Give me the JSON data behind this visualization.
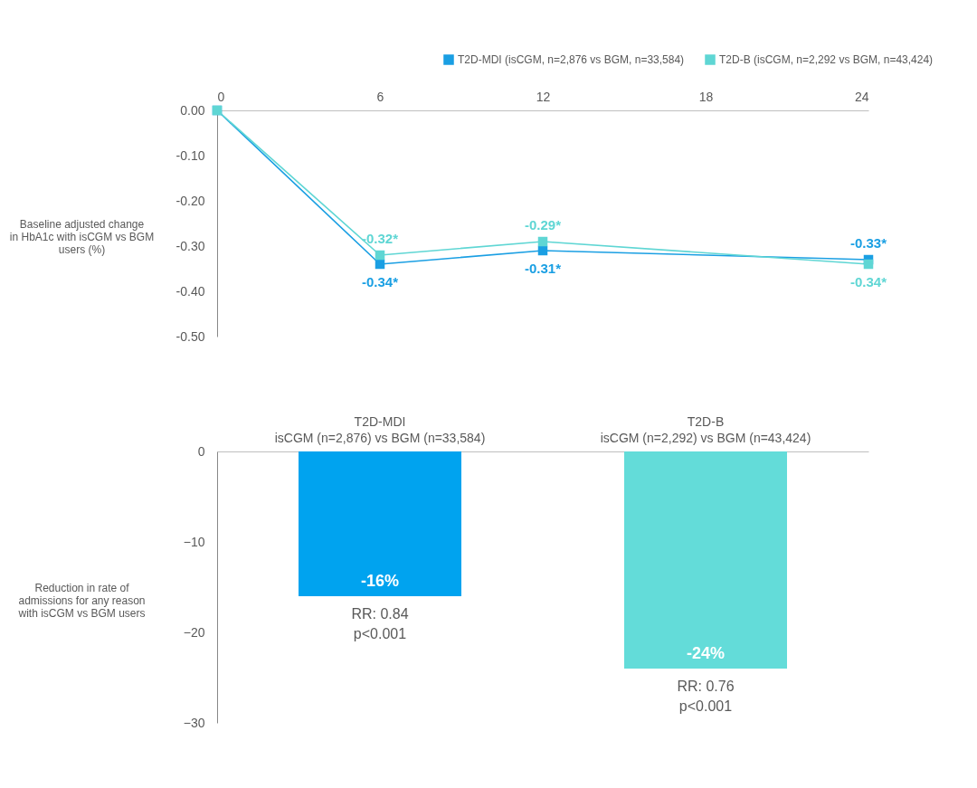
{
  "chart_data": [
    {
      "type": "line",
      "ylabel": "Baseline adjusted change in HbA1c with isCGM vs BGM users (%)",
      "x": [
        0,
        6,
        12,
        24
      ],
      "xlim": [
        0,
        24
      ],
      "xticks": [
        0,
        6,
        12,
        18,
        24
      ],
      "ylim": [
        -0.5,
        0
      ],
      "yticks": [
        {
          "value": 0,
          "label": "0.00"
        },
        {
          "value": -0.1,
          "label": "-0.10"
        },
        {
          "value": -0.2,
          "label": "-0.20"
        },
        {
          "value": -0.3,
          "label": "-0.30"
        },
        {
          "value": -0.4,
          "label": "-0.40"
        },
        {
          "value": -0.5,
          "label": "-0.50"
        }
      ],
      "marker": "square",
      "legend": "top right",
      "series": [
        {
          "name": "T2D-MDI (isCGM, n=2,876 vs BGM, n=33,584)",
          "color": "#1a9fe3",
          "values": [
            0,
            -0.34,
            -0.31,
            -0.33
          ],
          "value_labels": [
            null,
            "-0.34*",
            "-0.31*",
            "-0.33*"
          ]
        },
        {
          "name": "T2D-B (isCGM, n=2,292 vs BGM, n=43,424)",
          "color": "#5fd6d4",
          "values": [
            0,
            -0.32,
            -0.29,
            -0.34
          ],
          "value_labels": [
            null,
            "-0.32*",
            "-0.29*",
            "-0.34*"
          ]
        }
      ]
    },
    {
      "type": "bar",
      "ylabel": "Reduction in rate of admissions for any reason with isCGM vs BGM users",
      "categories": [
        "T2D-MDI\nisCGM (n=2,876) vs BGM (n=33,584)",
        "T2D-B\nisCGM (n=2,292) vs BGM (n=43,424)"
      ],
      "values": [
        -16,
        -24
      ],
      "colors": [
        "#00a3ef",
        "#63dcd9"
      ],
      "ylim": [
        -30,
        0
      ],
      "yticks": [
        0,
        -10,
        -20,
        -30
      ],
      "value_labels": [
        "-16%",
        "-24%"
      ],
      "annotations": [
        {
          "text": "RR: 0.84\np<0.001",
          "x": "T2D-MDI\nisCGM (n=2,876) vs BGM (n=33,584)",
          "y": -16
        },
        {
          "text": "RR: 0.76\np<0.001",
          "x": "T2D-B\nisCGM (n=2,292) vs BGM (n=43,424)",
          "y": -24
        }
      ]
    }
  ]
}
